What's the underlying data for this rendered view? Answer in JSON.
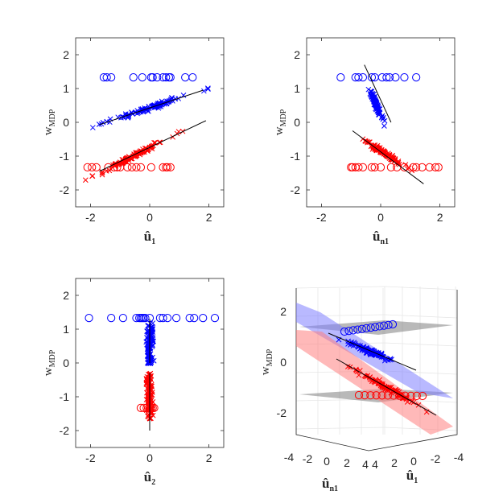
{
  "figure": {
    "title": ""
  },
  "chart_data": [
    {
      "type": "scatter",
      "xlabel": "û1",
      "xlabel_main": "û",
      "xlabel_sub": "1",
      "ylabel": "wMDP",
      "ylabel_main": "w",
      "ylabel_sub": "MDP",
      "xlim": [
        -2.5,
        2.5
      ],
      "ylim": [
        -2.5,
        2.5
      ],
      "xticks": [
        "-2",
        "0",
        "2"
      ],
      "xtick_values": [
        -2,
        0,
        2
      ],
      "yticks": [
        "2",
        "1",
        "0",
        "-1",
        "-2"
      ],
      "ytick_values": [
        2,
        1,
        0,
        -1,
        -2
      ],
      "series": [
        {
          "name": "class-blue-projections",
          "color": "#0000ff",
          "marker": "o",
          "y": 1.33,
          "x": [
            -1.55,
            -1.45,
            -1.3,
            -0.55,
            -0.25,
            0.05,
            0.1,
            0.25,
            0.45,
            0.55,
            0.65,
            0.7,
            1.2,
            1.45
          ]
        },
        {
          "name": "class-blue-samples",
          "color": "#0000ff",
          "marker": "x",
          "cluster": true,
          "x_range": [
            -2.0,
            2.2
          ],
          "slope": 0.29,
          "intercept": 0.43,
          "spread": 0.07,
          "count": 110
        },
        {
          "name": "class-red-projections",
          "color": "#ff0000",
          "marker": "o",
          "y": -1.33,
          "x": [
            -2.1,
            -1.95,
            -1.8,
            -1.4,
            -1.2,
            -1.1,
            -1.0,
            -0.75,
            -0.6,
            -0.45,
            -0.3,
            0.05,
            0.45,
            0.55,
            0.6,
            0.7
          ]
        },
        {
          "name": "class-red-samples",
          "color": "#ff0000",
          "marker": "x",
          "cluster": true,
          "x_range": [
            -2.2,
            1.2
          ],
          "slope": 0.45,
          "intercept": -0.75,
          "spread": 0.07,
          "count": 110
        }
      ],
      "lines": [
        {
          "name": "blue-fit-line",
          "x": [
            -1.7,
            1.8
          ],
          "y": [
            -0.07,
            0.95
          ]
        },
        {
          "name": "red-fit-line",
          "x": [
            -1.7,
            1.9
          ],
          "y": [
            -1.45,
            0.05
          ]
        }
      ]
    },
    {
      "type": "scatter",
      "xlabel": "ûn1",
      "xlabel_main": "û",
      "xlabel_sub": "n1",
      "ylabel": "wMDP",
      "ylabel_main": "w",
      "ylabel_sub": "MDP",
      "xlim": [
        -2.5,
        2.5
      ],
      "ylim": [
        -2.5,
        2.5
      ],
      "xticks": [
        "-2",
        "0",
        "2"
      ],
      "xtick_values": [
        -2,
        0,
        2
      ],
      "yticks": [
        "2",
        "1",
        "0",
        "-1",
        "-2"
      ],
      "ytick_values": [
        2,
        1,
        0,
        -1,
        -2
      ],
      "series": [
        {
          "name": "class-blue-projections",
          "color": "#0000ff",
          "marker": "o",
          "y": 1.33,
          "x": [
            -1.35,
            -0.85,
            -0.75,
            -0.6,
            -0.3,
            -0.2,
            0.05,
            0.2,
            0.3,
            0.5,
            0.8,
            1.2
          ]
        },
        {
          "name": "class-blue-samples",
          "color": "#0000ff",
          "marker": "x",
          "cluster": true,
          "x_range": [
            -0.5,
            0.15
          ],
          "slope": -1.85,
          "intercept": 0.25,
          "spread": 0.12,
          "count": 110
        },
        {
          "name": "class-red-projections",
          "color": "#ff0000",
          "marker": "o",
          "y": -1.33,
          "x": [
            -1.0,
            -0.95,
            -0.85,
            -0.75,
            -0.6,
            -0.3,
            -0.2,
            0.0,
            0.35,
            0.55,
            0.8,
            1.1,
            1.2,
            1.4,
            1.65,
            1.85,
            1.95
          ]
        },
        {
          "name": "class-red-samples",
          "color": "#ff0000",
          "marker": "x",
          "cluster": true,
          "x_range": [
            -0.9,
            1.1
          ],
          "slope": -0.55,
          "intercept": -0.85,
          "spread": 0.07,
          "count": 110
        }
      ],
      "lines": [
        {
          "name": "blue-fit-line",
          "x": [
            -0.55,
            0.35
          ],
          "y": [
            1.7,
            0.0
          ]
        },
        {
          "name": "red-fit-line",
          "x": [
            -0.95,
            1.45
          ],
          "y": [
            -0.25,
            -1.82
          ]
        }
      ]
    },
    {
      "type": "scatter",
      "xlabel": "û2",
      "xlabel_main": "û",
      "xlabel_sub": "2",
      "ylabel": "wMDP",
      "ylabel_main": "w",
      "ylabel_sub": "MDP",
      "xlim": [
        -2.5,
        2.5
      ],
      "ylim": [
        -2.5,
        2.5
      ],
      "xticks": [
        "-2",
        "0",
        "2"
      ],
      "xtick_values": [
        -2,
        0,
        2
      ],
      "yticks": [
        "2",
        "1",
        "0",
        "-1",
        "-2"
      ],
      "ytick_values": [
        2,
        1,
        0,
        -1,
        -2
      ],
      "series": [
        {
          "name": "class-blue-projections",
          "color": "#0000ff",
          "marker": "o",
          "y": 1.33,
          "x": [
            -2.05,
            -1.3,
            -0.9,
            -0.45,
            -0.35,
            -0.3,
            -0.25,
            -0.2,
            -0.15,
            0.0,
            0.35,
            0.45,
            0.6,
            0.9,
            1.35,
            1.5,
            1.8,
            2.2
          ]
        },
        {
          "name": "class-blue-samples",
          "color": "#0000ff",
          "marker": "x",
          "cluster": true,
          "x_range": [
            -0.15,
            0.15
          ],
          "y_range": [
            -0.05,
            1.2
          ],
          "count": 110
        },
        {
          "name": "class-red-projections",
          "color": "#ff0000",
          "marker": "o",
          "y": -1.33,
          "x": [
            -0.3,
            -0.2,
            -0.1,
            0.0,
            0.05,
            0.1,
            0.15
          ]
        },
        {
          "name": "class-red-samples",
          "color": "#ff0000",
          "marker": "x",
          "cluster": true,
          "x_range": [
            -0.15,
            0.15
          ],
          "y_range": [
            -1.65,
            -0.3
          ],
          "count": 110
        }
      ],
      "lines": [
        {
          "name": "blue-fit-line",
          "x": [
            0.0,
            0.0
          ],
          "y": [
            1.3,
            0.0
          ]
        },
        {
          "name": "red-fit-line",
          "x": [
            0.0,
            0.0
          ],
          "y": [
            -0.3,
            -2.0
          ]
        }
      ]
    },
    {
      "type": "scatter3d",
      "xlabel": "ûn1",
      "xlabel_main": "û",
      "xlabel_sub": "n1",
      "x2label": "û1",
      "x2label_main": "û",
      "x2label_sub": "1",
      "ylabel": "wMDP",
      "ylabel_main": "w",
      "ylabel_sub": "MDP",
      "zlim": [
        -3,
        3
      ],
      "zticks": [
        "2",
        "0",
        "-2"
      ],
      "ztick_values": [
        2,
        0,
        -2
      ],
      "xticks_left": [
        "-4",
        "-2",
        "0",
        "2",
        "4"
      ],
      "xticks_right": [
        "4",
        "2",
        "0",
        "-2",
        "-4"
      ],
      "planes": [
        {
          "name": "upper-plane",
          "color": "#808080",
          "level": 1.33
        },
        {
          "name": "lower-plane",
          "color": "#808080",
          "level": -1.33
        },
        {
          "name": "blue-separating-plane",
          "color": "#8080ff"
        },
        {
          "name": "red-separating-plane",
          "color": "#ff8080"
        }
      ],
      "series": [
        {
          "name": "class-blue-projections",
          "color": "#0000ff",
          "marker": "o",
          "count": 12
        },
        {
          "name": "class-blue-samples",
          "color": "#0000ff",
          "marker": "x",
          "count": 90
        },
        {
          "name": "class-red-projections",
          "color": "#ff0000",
          "marker": "o",
          "count": 12
        },
        {
          "name": "class-red-samples",
          "color": "#ff0000",
          "marker": "x",
          "count": 90
        }
      ]
    }
  ]
}
